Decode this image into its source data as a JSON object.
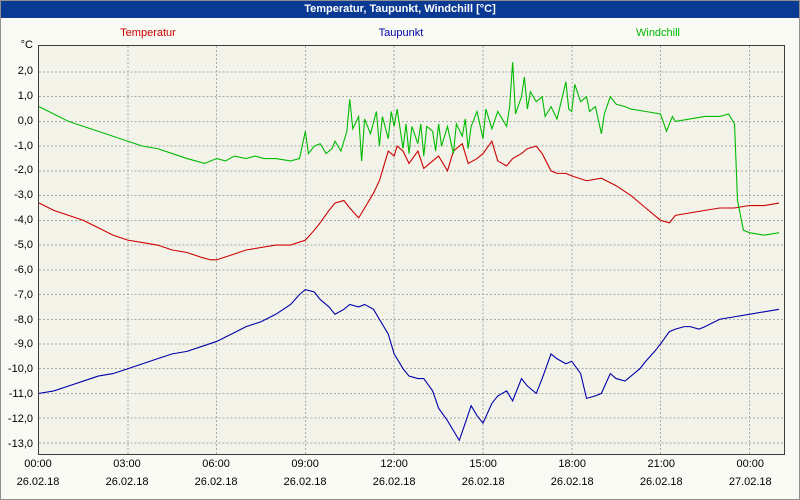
{
  "window": {
    "title": "Temperatur, Taupunkt, Windchill [°C]"
  },
  "colors": {
    "titlebar_bg": "#0a3a94",
    "titlebar_text": "#ffffff",
    "page_bg": "#fafaf5",
    "plot_bg": "#f3f3ea",
    "grid": "#ababab",
    "temperatur": "#cc0000",
    "taupunkt": "#0000aa",
    "windchill": "#00bb00"
  },
  "chart_data": {
    "type": "line",
    "title": "Temperatur, Taupunkt, Windchill [°C]",
    "ylabel": "°C",
    "xlabel": "",
    "x_unit": "hours from 00:00 26.02.18",
    "xlim": [
      0,
      25.17
    ],
    "ylim": [
      -13.45,
      3.05
    ],
    "grid": {
      "x_values": [
        3,
        6,
        9,
        12,
        15,
        18,
        21,
        24
      ],
      "y_values": [
        2,
        1,
        0,
        -1,
        -2,
        -3,
        -4,
        -5,
        -6,
        -7,
        -8,
        -9,
        -10,
        -11,
        -12,
        -13
      ]
    },
    "y_ticks": [
      {
        "value": 2,
        "label": "2,0"
      },
      {
        "value": 1,
        "label": "1,0"
      },
      {
        "value": 0,
        "label": "0,0"
      },
      {
        "value": -1,
        "label": "-1,0"
      },
      {
        "value": -2,
        "label": "-2,0"
      },
      {
        "value": -3,
        "label": "-3,0"
      },
      {
        "value": -4,
        "label": "-4,0"
      },
      {
        "value": -5,
        "label": "-5,0"
      },
      {
        "value": -6,
        "label": "-6,0"
      },
      {
        "value": -7,
        "label": "-7,0"
      },
      {
        "value": -8,
        "label": "-8,0"
      },
      {
        "value": -9,
        "label": "-9,0"
      },
      {
        "value": -10,
        "label": "-10,0"
      },
      {
        "value": -11,
        "label": "-11,0"
      },
      {
        "value": -12,
        "label": "-12,0"
      },
      {
        "value": -13,
        "label": "-13,0"
      }
    ],
    "x_ticks": [
      {
        "hour": 0,
        "time": "00:00",
        "date": "26.02.18"
      },
      {
        "hour": 3,
        "time": "03:00",
        "date": "26.02.18"
      },
      {
        "hour": 6,
        "time": "06:00",
        "date": "26.02.18"
      },
      {
        "hour": 9,
        "time": "09:00",
        "date": "26.02.18"
      },
      {
        "hour": 12,
        "time": "12:00",
        "date": "26.02.18"
      },
      {
        "hour": 15,
        "time": "15:00",
        "date": "26.02.18"
      },
      {
        "hour": 18,
        "time": "18:00",
        "date": "26.02.18"
      },
      {
        "hour": 21,
        "time": "21:00",
        "date": "26.02.18"
      },
      {
        "hour": 24,
        "time": "00:00",
        "date": "27.02.18"
      }
    ],
    "series": [
      {
        "name": "Temperatur",
        "color": "#cc0000",
        "x": [
          0,
          0.5,
          1,
          1.5,
          2,
          2.5,
          3,
          3.5,
          4,
          4.5,
          5,
          5.5,
          5.8,
          6,
          6.5,
          7,
          7.5,
          8,
          8.5,
          9,
          9.3,
          9.5,
          9.8,
          10,
          10.3,
          10.5,
          10.8,
          11,
          11.3,
          11.5,
          11.8,
          12,
          12.1,
          12.3,
          12.5,
          12.8,
          13,
          13.3,
          13.5,
          13.8,
          14,
          14.3,
          14.5,
          14.8,
          15,
          15.3,
          15.5,
          15.8,
          16,
          16.3,
          16.5,
          16.8,
          17,
          17.3,
          17.5,
          17.8,
          18,
          18.5,
          19,
          19.5,
          20,
          20.5,
          21,
          21.3,
          21.5,
          22,
          22.5,
          23,
          23.5,
          24,
          24.5,
          25
        ],
        "values": [
          -3.3,
          -3.6,
          -3.8,
          -4,
          -4.3,
          -4.6,
          -4.8,
          -4.9,
          -5,
          -5.2,
          -5.3,
          -5.5,
          -5.6,
          -5.6,
          -5.4,
          -5.2,
          -5.1,
          -5,
          -5,
          -4.8,
          -4.4,
          -4.1,
          -3.6,
          -3.3,
          -3.2,
          -3.5,
          -3.9,
          -3.5,
          -2.9,
          -2.4,
          -1.2,
          -1.4,
          -1,
          -1.2,
          -1.7,
          -1.2,
          -1.9,
          -1.6,
          -1.4,
          -2,
          -1.2,
          -0.9,
          -1.7,
          -1.5,
          -1.3,
          -0.8,
          -1.6,
          -1.8,
          -1.5,
          -1.3,
          -1.1,
          -1,
          -1.3,
          -2,
          -2.1,
          -2.1,
          -2.2,
          -2.4,
          -2.3,
          -2.6,
          -3,
          -3.5,
          -4,
          -4.1,
          -3.8,
          -3.7,
          -3.6,
          -3.5,
          -3.5,
          -3.4,
          -3.4,
          -3.3
        ]
      },
      {
        "name": "Taupunkt",
        "color": "#0000aa",
        "x": [
          0,
          0.5,
          1,
          1.5,
          2,
          2.5,
          3,
          3.5,
          4,
          4.5,
          5,
          5.5,
          6,
          6.5,
          7,
          7.5,
          8,
          8.5,
          8.8,
          9,
          9.3,
          9.5,
          9.8,
          10,
          10.3,
          10.5,
          10.8,
          11,
          11.3,
          11.5,
          11.8,
          12,
          12.3,
          12.5,
          12.8,
          13,
          13.3,
          13.5,
          13.8,
          14,
          14.2,
          14.4,
          14.6,
          14.8,
          15,
          15.3,
          15.5,
          15.8,
          16,
          16.3,
          16.5,
          16.8,
          17,
          17.3,
          17.5,
          17.8,
          18,
          18.3,
          18.5,
          18.8,
          19,
          19.3,
          19.5,
          19.8,
          20,
          20.3,
          20.5,
          20.8,
          21,
          21.3,
          21.5,
          21.8,
          22,
          22.3,
          22.5,
          23,
          23.5,
          24,
          24.5,
          25
        ],
        "values": [
          -11,
          -10.9,
          -10.7,
          -10.5,
          -10.3,
          -10.2,
          -10,
          -9.8,
          -9.6,
          -9.4,
          -9.3,
          -9.1,
          -8.9,
          -8.6,
          -8.3,
          -8.1,
          -7.8,
          -7.4,
          -7,
          -6.8,
          -6.9,
          -7.2,
          -7.5,
          -7.8,
          -7.6,
          -7.4,
          -7.5,
          -7.4,
          -7.6,
          -8,
          -8.6,
          -9.4,
          -10,
          -10.3,
          -10.4,
          -10.4,
          -10.9,
          -11.6,
          -12.1,
          -12.5,
          -12.9,
          -12.2,
          -11.5,
          -11.9,
          -12.2,
          -11.4,
          -11.1,
          -10.9,
          -11.3,
          -10.4,
          -10.7,
          -11,
          -10.4,
          -9.4,
          -9.6,
          -9.8,
          -9.7,
          -10.2,
          -11.2,
          -11.1,
          -11,
          -10.2,
          -10.4,
          -10.5,
          -10.3,
          -10,
          -9.7,
          -9.3,
          -9,
          -8.5,
          -8.4,
          -8.3,
          -8.3,
          -8.4,
          -8.3,
          -8,
          -7.9,
          -7.8,
          -7.7,
          -7.6
        ]
      },
      {
        "name": "Windchill",
        "color": "#00bb00",
        "x": [
          0,
          0.5,
          1,
          1.5,
          2,
          2.5,
          3,
          3.5,
          4,
          4.5,
          5,
          5.3,
          5.6,
          6,
          6.3,
          6.6,
          7,
          7.3,
          7.6,
          8,
          8.5,
          8.8,
          9,
          9.1,
          9.3,
          9.5,
          9.7,
          9.9,
          10,
          10.2,
          10.4,
          10.5,
          10.6,
          10.8,
          10.9,
          11,
          11.2,
          11.4,
          11.5,
          11.6,
          11.8,
          11.9,
          12,
          12.1,
          12.3,
          12.4,
          12.5,
          12.6,
          12.8,
          12.9,
          13,
          13.1,
          13.3,
          13.4,
          13.5,
          13.6,
          13.8,
          14,
          14.1,
          14.3,
          14.4,
          14.5,
          14.6,
          14.8,
          15,
          15.1,
          15.3,
          15.5,
          15.8,
          15.9,
          16,
          16.1,
          16.3,
          16.4,
          16.5,
          16.6,
          16.8,
          17,
          17.1,
          17.3,
          17.5,
          17.8,
          17.9,
          18,
          18.1,
          18.3,
          18.5,
          18.6,
          18.8,
          19,
          19.1,
          19.3,
          19.5,
          19.8,
          20,
          20.5,
          21,
          21.2,
          21.4,
          21.5,
          22,
          22.5,
          23,
          23.3,
          23.5,
          23.6,
          23.8,
          24,
          24.5,
          25
        ],
        "values": [
          0.6,
          0.3,
          0,
          -0.2,
          -0.4,
          -0.6,
          -0.8,
          -1,
          -1.1,
          -1.3,
          -1.5,
          -1.6,
          -1.7,
          -1.5,
          -1.6,
          -1.4,
          -1.5,
          -1.4,
          -1.5,
          -1.5,
          -1.6,
          -1.5,
          -0.4,
          -1.3,
          -1,
          -0.9,
          -1.3,
          -1.1,
          -0.8,
          -1.2,
          -0.4,
          0.9,
          -0.3,
          0.2,
          -1.6,
          0.1,
          -0.5,
          0.4,
          -1,
          0.2,
          -0.7,
          0.4,
          -0.2,
          0.5,
          -1.1,
          -0.1,
          -1.3,
          -0.2,
          -0.9,
          -0.1,
          -1.4,
          -0.2,
          -0.4,
          -1.2,
          -0.1,
          -1,
          -0.2,
          -1.3,
          -0.1,
          -0.6,
          0.1,
          -1.1,
          -0.2,
          0.4,
          -0.7,
          0.5,
          -0.3,
          0.4,
          -0.2,
          0.6,
          2.4,
          0.3,
          1,
          1.8,
          0.5,
          1.2,
          0.8,
          1,
          0.2,
          0.6,
          0.1,
          1.6,
          0.5,
          0.4,
          1.5,
          0.8,
          1,
          0.4,
          0.6,
          -0.5,
          0.3,
          1,
          0.7,
          0.6,
          0.5,
          0.4,
          0.3,
          -0.4,
          0.2,
          0,
          0.1,
          0.2,
          0.2,
          0.3,
          -0.1,
          -3.2,
          -4.4,
          -4.5,
          -4.6,
          -4.5
        ]
      }
    ]
  }
}
